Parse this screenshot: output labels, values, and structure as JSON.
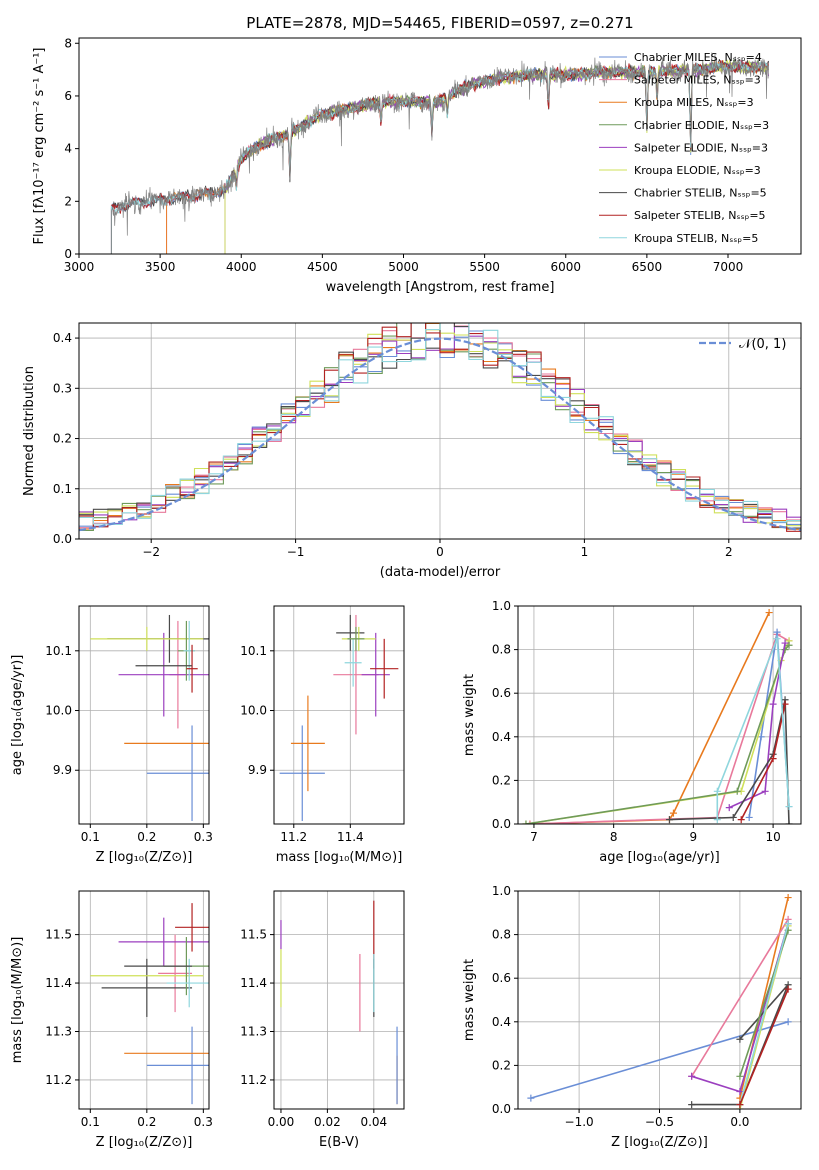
{
  "title": "PLATE=2878, MJD=54465, FIBERID=0597, z=0.271",
  "colors": {
    "Chabrier MILES": "#6a8ed6",
    "Salpeter MILES": "#e8799b",
    "Kroupa MILES": "#e87a1e",
    "Chabrier ELODIE": "#6f9a5a",
    "Salpeter ELODIE": "#9b3fbf",
    "Kroupa ELODIE": "#cfe05a",
    "Chabrier STELIB": "#4a4a4a",
    "Salpeter STELIB": "#b22222",
    "Kroupa STELIB": "#8fd6dd",
    "gauss": "#6a8ed6"
  },
  "models": [
    "Chabrier MILES",
    "Salpeter MILES",
    "Kroupa MILES",
    "Chabrier ELODIE",
    "Salpeter ELODIE",
    "Kroupa ELODIE",
    "Chabrier STELIB",
    "Salpeter STELIB",
    "Kroupa STELIB"
  ],
  "chart_data": [
    {
      "id": "spectrum",
      "type": "line",
      "xlabel": "wavelength [Angstrom, rest frame]",
      "ylabel": "Flux [fλ10⁻¹⁷ erg cm⁻² s⁻¹ A⁻¹]",
      "xlim": [
        3000,
        7450
      ],
      "ylim": [
        0,
        8.2
      ],
      "xticks": [
        3000,
        3500,
        4000,
        4500,
        5000,
        5500,
        6000,
        6500,
        7000
      ],
      "yticks": [
        0,
        2,
        4,
        6,
        8
      ],
      "legend": [
        "Chabrier MILES, Nₛₛₚ=4",
        "Salpeter MILES, Nₛₛₚ=3",
        "Kroupa MILES, Nₛₛₚ=3",
        "Chabrier ELODIE, Nₛₛₚ=3",
        "Salpeter ELODIE, Nₛₛₚ=3",
        "Kroupa ELODIE, Nₛₛₚ=3",
        "Chabrier STELIB, Nₛₛₚ=5",
        "Salpeter STELIB, Nₛₛₚ=5",
        "Kroupa STELIB, Nₛₛₚ=5"
      ],
      "legend_position": "right",
      "continuum": [
        [
          3200,
          1.7
        ],
        [
          3350,
          1.95
        ],
        [
          3500,
          2.05
        ],
        [
          3700,
          2.2
        ],
        [
          3900,
          2.4
        ],
        [
          4000,
          3.6
        ],
        [
          4100,
          4.1
        ],
        [
          4300,
          4.6
        ],
        [
          4500,
          5.3
        ],
        [
          4800,
          5.7
        ],
        [
          5000,
          5.8
        ],
        [
          5200,
          5.75
        ],
        [
          5400,
          6.4
        ],
        [
          5600,
          6.7
        ],
        [
          5800,
          6.8
        ],
        [
          6000,
          6.8
        ],
        [
          6200,
          6.9
        ],
        [
          6500,
          6.9
        ],
        [
          6800,
          7.0
        ],
        [
          7000,
          7.1
        ],
        [
          7200,
          7.1
        ]
      ],
      "features": [
        [
          3935,
          3.2
        ],
        [
          3970,
          2.6
        ],
        [
          4300,
          3.0
        ],
        [
          4861,
          5.0
        ],
        [
          5175,
          4.6
        ],
        [
          5270,
          5.3
        ],
        [
          5893,
          5.6
        ],
        [
          6563,
          6.0
        ],
        [
          6770,
          4.0
        ],
        [
          6500,
          4.7
        ]
      ]
    },
    {
      "id": "residuals",
      "type": "histogram",
      "xlabel": "(data-model)/error",
      "ylabel": "Normed distribution",
      "xlim": [
        -2.5,
        2.5
      ],
      "ylim": [
        0,
        0.43
      ],
      "xticks": [
        -2,
        -1,
        0,
        1,
        2
      ],
      "yticks": [
        0.0,
        0.1,
        0.2,
        0.3,
        0.4
      ],
      "legend": [
        "𝒩(0, 1)"
      ],
      "legend_position": "top-right",
      "bin_width": 0.1,
      "grid": true
    },
    {
      "id": "age_vs_Z",
      "type": "scatter-errorbar",
      "xlabel": "Z [log₁₀(Z/Z⊙)]",
      "ylabel": "age  [log₁₀(age/yr)]",
      "xlim": [
        0.08,
        0.31
      ],
      "ylim": [
        9.81,
        10.175
      ],
      "xticks": [
        0.1,
        0.2,
        0.3
      ],
      "yticks": [
        9.9,
        10.0,
        10.1
      ],
      "points": [
        {
          "model": "Chabrier MILES",
          "x": 0.28,
          "y": 9.895,
          "xerr": 0.08,
          "yerr": 0.08
        },
        {
          "model": "Kroupa MILES",
          "x": 0.26,
          "y": 9.945,
          "xerr": 0.1,
          "yerr": 0.0
        },
        {
          "model": "Salpeter MILES",
          "x": 0.255,
          "y": 10.06,
          "xerr": 0.015,
          "yerr": 0.09
        },
        {
          "model": "Salpeter ELODIE",
          "x": 0.23,
          "y": 10.06,
          "xerr": 0.08,
          "yerr": 0.07
        },
        {
          "model": "Chabrier STELIB",
          "x": 0.24,
          "y": 10.12,
          "xerr": 0.11,
          "yerr": 0.04
        },
        {
          "model": "Kroupa ELODIE",
          "x": 0.2,
          "y": 10.12,
          "xerr": 0.1,
          "yerr": 0.02
        },
        {
          "model": "Chabrier ELODIE",
          "x": 0.27,
          "y": 10.1,
          "xerr": 0.015,
          "yerr": 0.05
        },
        {
          "model": "Kroupa STELIB",
          "x": 0.275,
          "y": 10.1,
          "xerr": 0.01,
          "yerr": 0.05
        },
        {
          "model": "Salpeter STELIB",
          "x": 0.28,
          "y": 10.07,
          "xerr": 0.01,
          "yerr": 0.04
        },
        {
          "model": "Chabrier STELIB",
          "x": 0.23,
          "y": 10.075,
          "xerr": 0.05,
          "yerr": 0.0
        }
      ]
    },
    {
      "id": "age_vs_mass",
      "type": "scatter-errorbar",
      "xlabel": "mass [log₁₀(M/M⊙)]",
      "ylabel": "",
      "xlim": [
        11.13,
        11.59
      ],
      "ylim": [
        9.81,
        10.175
      ],
      "xticks": [
        11.2,
        11.4
      ],
      "yticks": [
        9.9,
        10.0,
        10.1
      ],
      "points": [
        {
          "model": "Chabrier MILES",
          "x": 11.23,
          "y": 9.895,
          "xerr": 0.08,
          "yerr": 0.08
        },
        {
          "model": "Kroupa MILES",
          "x": 11.25,
          "y": 9.945,
          "xerr": 0.06,
          "yerr": 0.08
        },
        {
          "model": "Salpeter MILES",
          "x": 11.42,
          "y": 10.06,
          "xerr": 0.08,
          "yerr": 0.1
        },
        {
          "model": "Salpeter ELODIE",
          "x": 11.49,
          "y": 10.06,
          "xerr": 0.05,
          "yerr": 0.07
        },
        {
          "model": "Chabrier STELIB",
          "x": 11.4,
          "y": 10.13,
          "xerr": 0.05,
          "yerr": 0.03
        },
        {
          "model": "Kroupa ELODIE",
          "x": 11.43,
          "y": 10.12,
          "xerr": 0.06,
          "yerr": 0.02
        },
        {
          "model": "Salpeter STELIB",
          "x": 11.52,
          "y": 10.07,
          "xerr": 0.05,
          "yerr": 0.05
        },
        {
          "model": "Kroupa STELIB",
          "x": 11.41,
          "y": 10.08,
          "xerr": 0.03,
          "yerr": 0.04
        },
        {
          "model": "Chabrier ELODIE",
          "x": 11.42,
          "y": 10.12,
          "xerr": 0.03,
          "yerr": 0.02
        }
      ]
    },
    {
      "id": "weight_vs_age",
      "type": "line",
      "xlabel": "age  [log₁₀(age/yr)]",
      "ylabel": "mass weight",
      "xlim": [
        6.8,
        10.35
      ],
      "ylim": [
        0,
        1.0
      ],
      "xticks": [
        7,
        8,
        9,
        10
      ],
      "yticks": [
        0.0,
        0.2,
        0.4,
        0.6,
        0.8,
        1.0
      ],
      "series": [
        {
          "model": "Kroupa MILES",
          "points": [
            [
              6.95,
              0.0
            ],
            [
              8.7,
              0.02
            ],
            [
              8.75,
              0.05
            ],
            [
              9.95,
              0.97
            ]
          ]
        },
        {
          "model": "Salpeter MILES",
          "points": [
            [
              6.95,
              0.0
            ],
            [
              9.3,
              0.03
            ],
            [
              10.05,
              0.87
            ],
            [
              10.2,
              0.84
            ]
          ]
        },
        {
          "model": "Chabrier MILES",
          "points": [
            [
              9.7,
              0.03
            ],
            [
              9.85,
              0.4
            ],
            [
              10.05,
              0.88
            ],
            [
              10.2,
              0.08
            ]
          ]
        },
        {
          "model": "Kroupa ELODIE",
          "points": [
            [
              6.9,
              0.0
            ],
            [
              9.6,
              0.15
            ],
            [
              10.1,
              0.75
            ],
            [
              10.2,
              0.84
            ]
          ]
        },
        {
          "model": "Chabrier ELODIE",
          "points": [
            [
              6.9,
              0.0
            ],
            [
              9.55,
              0.15
            ],
            [
              10.15,
              0.8
            ],
            [
              10.2,
              0.82
            ]
          ]
        },
        {
          "model": "Salpeter ELODIE",
          "points": [
            [
              9.45,
              0.075
            ],
            [
              9.9,
              0.15
            ],
            [
              10.0,
              0.55
            ],
            [
              10.15,
              0.83
            ]
          ]
        },
        {
          "model": "Chabrier STELIB",
          "points": [
            [
              8.7,
              0.02
            ],
            [
              9.5,
              0.03
            ],
            [
              10.0,
              0.32
            ],
            [
              10.15,
              0.57
            ],
            [
              10.2,
              0.0
            ]
          ]
        },
        {
          "model": "Salpeter STELIB",
          "points": [
            [
              9.6,
              0.02
            ],
            [
              10.0,
              0.3
            ],
            [
              10.15,
              0.55
            ]
          ]
        },
        {
          "model": "Kroupa STELIB",
          "points": [
            [
              9.3,
              0.02
            ],
            [
              9.3,
              0.15
            ],
            [
              10.05,
              0.85
            ],
            [
              10.2,
              0.08
            ]
          ]
        }
      ]
    },
    {
      "id": "mass_vs_Z",
      "type": "scatter-errorbar",
      "xlabel": "Z [log₁₀(Z/Z⊙)]",
      "ylabel": "mass [log₁₀(M/M⊙)]",
      "xlim": [
        0.08,
        0.31
      ],
      "ylim": [
        11.14,
        11.59
      ],
      "xticks": [
        0.1,
        0.2,
        0.3
      ],
      "yticks": [
        11.2,
        11.3,
        11.4,
        11.5
      ],
      "points": [
        {
          "model": "Chabrier MILES",
          "x": 0.28,
          "y": 11.23,
          "xerr": 0.08,
          "yerr": 0.08
        },
        {
          "model": "Kroupa MILES",
          "x": 0.26,
          "y": 11.255,
          "xerr": 0.1,
          "yerr": 0.0
        },
        {
          "model": "Salpeter MILES",
          "x": 0.25,
          "y": 11.42,
          "xerr": 0.03,
          "yerr": 0.08
        },
        {
          "model": "Salpeter ELODIE",
          "x": 0.23,
          "y": 11.485,
          "xerr": 0.08,
          "yerr": 0.05
        },
        {
          "model": "Chabrier STELIB",
          "x": 0.2,
          "y": 11.39,
          "xerr": 0.08,
          "yerr": 0.06
        },
        {
          "model": "Kroupa ELODIE",
          "x": 0.2,
          "y": 11.415,
          "xerr": 0.1,
          "yerr": 0.0
        },
        {
          "model": "Chabrier ELODIE",
          "x": 0.27,
          "y": 11.435,
          "xerr": 0.04,
          "yerr": 0.06
        },
        {
          "model": "Kroupa STELIB",
          "x": 0.275,
          "y": 11.4,
          "xerr": 0.04,
          "yerr": 0.05
        },
        {
          "model": "Salpeter STELIB",
          "x": 0.28,
          "y": 11.515,
          "xerr": 0.03,
          "yerr": 0.05
        },
        {
          "model": "Chabrier STELIB",
          "x": 0.22,
          "y": 11.435,
          "xerr": 0.06,
          "yerr": 0.0
        }
      ]
    },
    {
      "id": "mass_vs_ebv",
      "type": "scatter-errorbar",
      "xlabel": "E(B-V)",
      "ylabel": "",
      "xlim": [
        -0.003,
        0.053
      ],
      "ylim": [
        11.14,
        11.59
      ],
      "xticks": [
        0.0,
        0.02,
        0.04
      ],
      "yticks": [
        11.2,
        11.3,
        11.4,
        11.5
      ],
      "points": [
        {
          "model": "Salpeter ELODIE",
          "x": 0.0,
          "y": 11.5,
          "xerr": 0.0,
          "yerr": 0.03
        },
        {
          "model": "Kroupa ELODIE",
          "x": 0.0,
          "y": 11.41,
          "xerr": 0.0,
          "yerr": 0.06
        },
        {
          "model": "Salpeter MILES",
          "x": 0.034,
          "y": 11.38,
          "xerr": 0.0,
          "yerr": 0.08
        },
        {
          "model": "Salpeter STELIB",
          "x": 0.04,
          "y": 11.5,
          "xerr": 0.0,
          "yerr": 0.07
        },
        {
          "model": "Chabrier STELIB",
          "x": 0.04,
          "y": 11.39,
          "xerr": 0.0,
          "yerr": 0.06
        },
        {
          "model": "Kroupa STELIB",
          "x": 0.04,
          "y": 11.4,
          "xerr": 0.0,
          "yerr": 0.06
        },
        {
          "model": "Kroupa MILES",
          "x": 0.05,
          "y": 11.2,
          "xerr": 0.0,
          "yerr": 0.05
        },
        {
          "model": "Chabrier MILES",
          "x": 0.05,
          "y": 11.23,
          "xerr": 0.0,
          "yerr": 0.08
        }
      ]
    },
    {
      "id": "weight_vs_Z",
      "type": "line",
      "xlabel": "Z [log₁₀(Z/Z⊙)]",
      "ylabel": "mass weight",
      "xlim": [
        -1.38,
        0.38
      ],
      "ylim": [
        0,
        1.0
      ],
      "xticks": [
        -1.0,
        -0.5,
        0.0
      ],
      "yticks": [
        0.0,
        0.2,
        0.4,
        0.6,
        0.8,
        1.0
      ],
      "series": [
        {
          "model": "Chabrier MILES",
          "points": [
            [
              -1.3,
              0.05
            ],
            [
              0.3,
              0.4
            ]
          ]
        },
        {
          "model": "Kroupa MILES",
          "points": [
            [
              0.0,
              0.05
            ],
            [
              0.3,
              0.97
            ]
          ]
        },
        {
          "model": "Salpeter MILES",
          "points": [
            [
              -0.3,
              0.15
            ],
            [
              0.3,
              0.87
            ]
          ]
        },
        {
          "model": "Salpeter ELODIE",
          "points": [
            [
              -0.3,
              0.15
            ],
            [
              0.0,
              0.08
            ],
            [
              0.3,
              0.85
            ]
          ]
        },
        {
          "model": "Chabrier STELIB",
          "points": [
            [
              -0.3,
              0.02
            ],
            [
              0.0,
              0.02
            ],
            [
              0.3,
              0.57
            ],
            [
              0.0,
              0.32
            ]
          ]
        },
        {
          "model": "Kroupa ELODIE",
          "points": [
            [
              0.0,
              0.0
            ],
            [
              0.3,
              0.84
            ]
          ]
        },
        {
          "model": "Chabrier ELODIE",
          "points": [
            [
              0.0,
              0.15
            ],
            [
              0.3,
              0.82
            ]
          ]
        },
        {
          "model": "Kroupa STELIB",
          "points": [
            [
              0.0,
              0.02
            ],
            [
              0.3,
              0.85
            ]
          ]
        },
        {
          "model": "Salpeter STELIB",
          "points": [
            [
              0.0,
              0.02
            ],
            [
              0.3,
              0.55
            ]
          ]
        }
      ]
    }
  ]
}
